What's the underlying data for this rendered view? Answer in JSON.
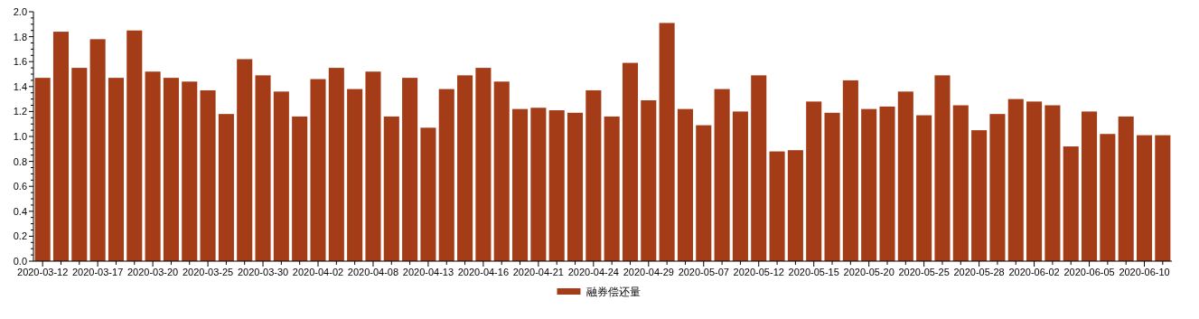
{
  "chart_data": {
    "type": "bar",
    "categories": [
      "2020-03-12",
      null,
      null,
      "2020-03-17",
      null,
      null,
      "2020-03-20",
      null,
      null,
      "2020-03-25",
      null,
      null,
      "2020-03-30",
      null,
      null,
      "2020-04-02",
      null,
      null,
      "2020-04-08",
      null,
      null,
      "2020-04-13",
      null,
      null,
      "2020-04-16",
      null,
      null,
      "2020-04-21",
      null,
      null,
      "2020-04-24",
      null,
      null,
      "2020-04-29",
      null,
      null,
      "2020-05-07",
      null,
      null,
      "2020-05-12",
      null,
      null,
      "2020-05-15",
      null,
      null,
      "2020-05-20",
      null,
      null,
      "2020-05-25",
      null,
      null,
      "2020-05-28",
      null,
      null,
      "2020-06-02",
      null,
      null,
      "2020-06-05",
      null,
      null,
      "2020-06-10",
      null
    ],
    "series": [
      {
        "name": "融券偿还量",
        "color": "#a53c18",
        "values": [
          1.47,
          1.84,
          1.55,
          1.78,
          1.47,
          1.85,
          1.52,
          1.47,
          1.44,
          1.37,
          1.18,
          1.62,
          1.49,
          1.36,
          1.16,
          1.46,
          1.55,
          1.38,
          1.52,
          1.16,
          1.47,
          1.07,
          1.38,
          1.49,
          1.55,
          1.44,
          1.22,
          1.23,
          1.21,
          1.19,
          1.37,
          1.16,
          1.59,
          1.29,
          1.91,
          1.22,
          1.09,
          1.38,
          1.2,
          1.49,
          0.88,
          0.89,
          1.28,
          1.19,
          1.45,
          1.22,
          1.24,
          1.36,
          1.17,
          1.49,
          1.25,
          1.05,
          1.18,
          1.3,
          1.28,
          1.25,
          0.92,
          1.2,
          1.02,
          1.16,
          1.01,
          1.01
        ]
      }
    ],
    "ylim": [
      0,
      2
    ],
    "yticks": [
      {
        "value": 0,
        "label": "0.0"
      },
      {
        "value": 0.2,
        "label": "0.2"
      },
      {
        "value": 0.4,
        "label": "0.4"
      },
      {
        "value": 0.6,
        "label": "0.6"
      },
      {
        "value": 0.8,
        "label": "0.8"
      },
      {
        "value": 1,
        "label": "1.0"
      },
      {
        "value": 1.2,
        "label": "1.2"
      },
      {
        "value": 1.4,
        "label": "1.4"
      },
      {
        "value": 1.6,
        "label": "1.6"
      },
      {
        "value": 1.8,
        "label": "1.8"
      },
      {
        "value": 2,
        "label": "2.0"
      }
    ],
    "legend": "bottom"
  }
}
